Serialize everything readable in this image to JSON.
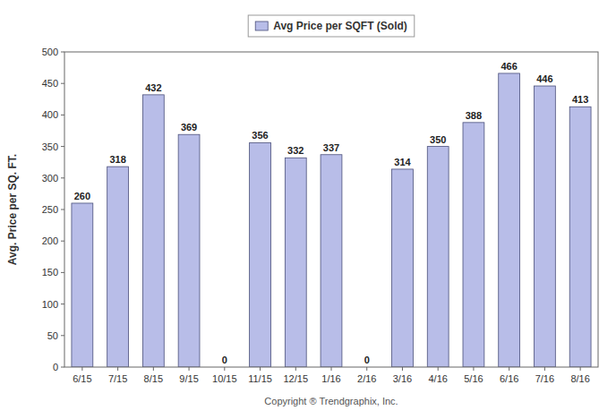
{
  "chart_data": {
    "type": "bar",
    "categories": [
      "6/15",
      "7/15",
      "8/15",
      "9/15",
      "10/15",
      "11/15",
      "12/15",
      "1/16",
      "2/16",
      "3/16",
      "4/16",
      "5/16",
      "6/16",
      "7/16",
      "8/16"
    ],
    "series": [
      {
        "name": "Avg Price per SQFT (Sold)",
        "color": "#b8bde8",
        "values": [
          260,
          318,
          432,
          369,
          0,
          356,
          332,
          337,
          0,
          314,
          350,
          388,
          466,
          446,
          413
        ]
      }
    ],
    "xlabel": "Copyright ® Trendgraphix, Inc.",
    "ylabel": "Avg. Price per SQ. FT.",
    "ylim": [
      0,
      500
    ],
    "yticks": [
      0,
      50,
      100,
      150,
      200,
      250,
      300,
      350,
      400,
      450,
      500
    ],
    "grid": false,
    "legend": "top",
    "data_labels": true
  }
}
